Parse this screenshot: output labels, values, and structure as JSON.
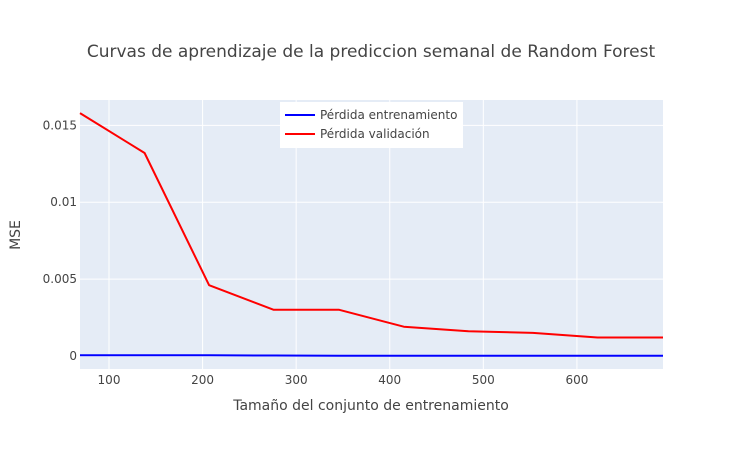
{
  "chart_data": {
    "type": "line",
    "title": "Curvas de aprendizaje de la prediccion semanal de Random Forest",
    "xlabel": "Tamaño del conjunto de entrenamiento",
    "ylabel": "MSE",
    "xlim": [
      69,
      692
    ],
    "ylim": [
      -0.00085,
      0.01665
    ],
    "xticks": [
      100,
      200,
      300,
      400,
      500,
      600
    ],
    "yticks": [
      0,
      0.005,
      0.01,
      0.015
    ],
    "ytick_labels": [
      "0",
      "0.005",
      "0.01",
      "0.015"
    ],
    "grid": true,
    "legend_position": "top-center",
    "x": [
      69,
      138,
      207,
      276,
      346,
      415,
      484,
      553,
      622,
      692
    ],
    "series": [
      {
        "name": "Pérdida entrenamiento",
        "color": "#0000ff",
        "values": [
          5e-05,
          5e-05,
          4e-05,
          3e-05,
          1e-05,
          1e-05,
          1e-05,
          1e-05,
          1e-05,
          1e-05
        ]
      },
      {
        "name": "Pérdida validación",
        "color": "#ff0000",
        "values": [
          0.0158,
          0.0132,
          0.0046,
          0.003,
          0.003,
          0.0019,
          0.0016,
          0.0015,
          0.0012,
          0.0012
        ]
      }
    ],
    "colors": {
      "plot_bg": "#e5ecf6",
      "grid": "#ffffff",
      "text": "#444444"
    }
  }
}
